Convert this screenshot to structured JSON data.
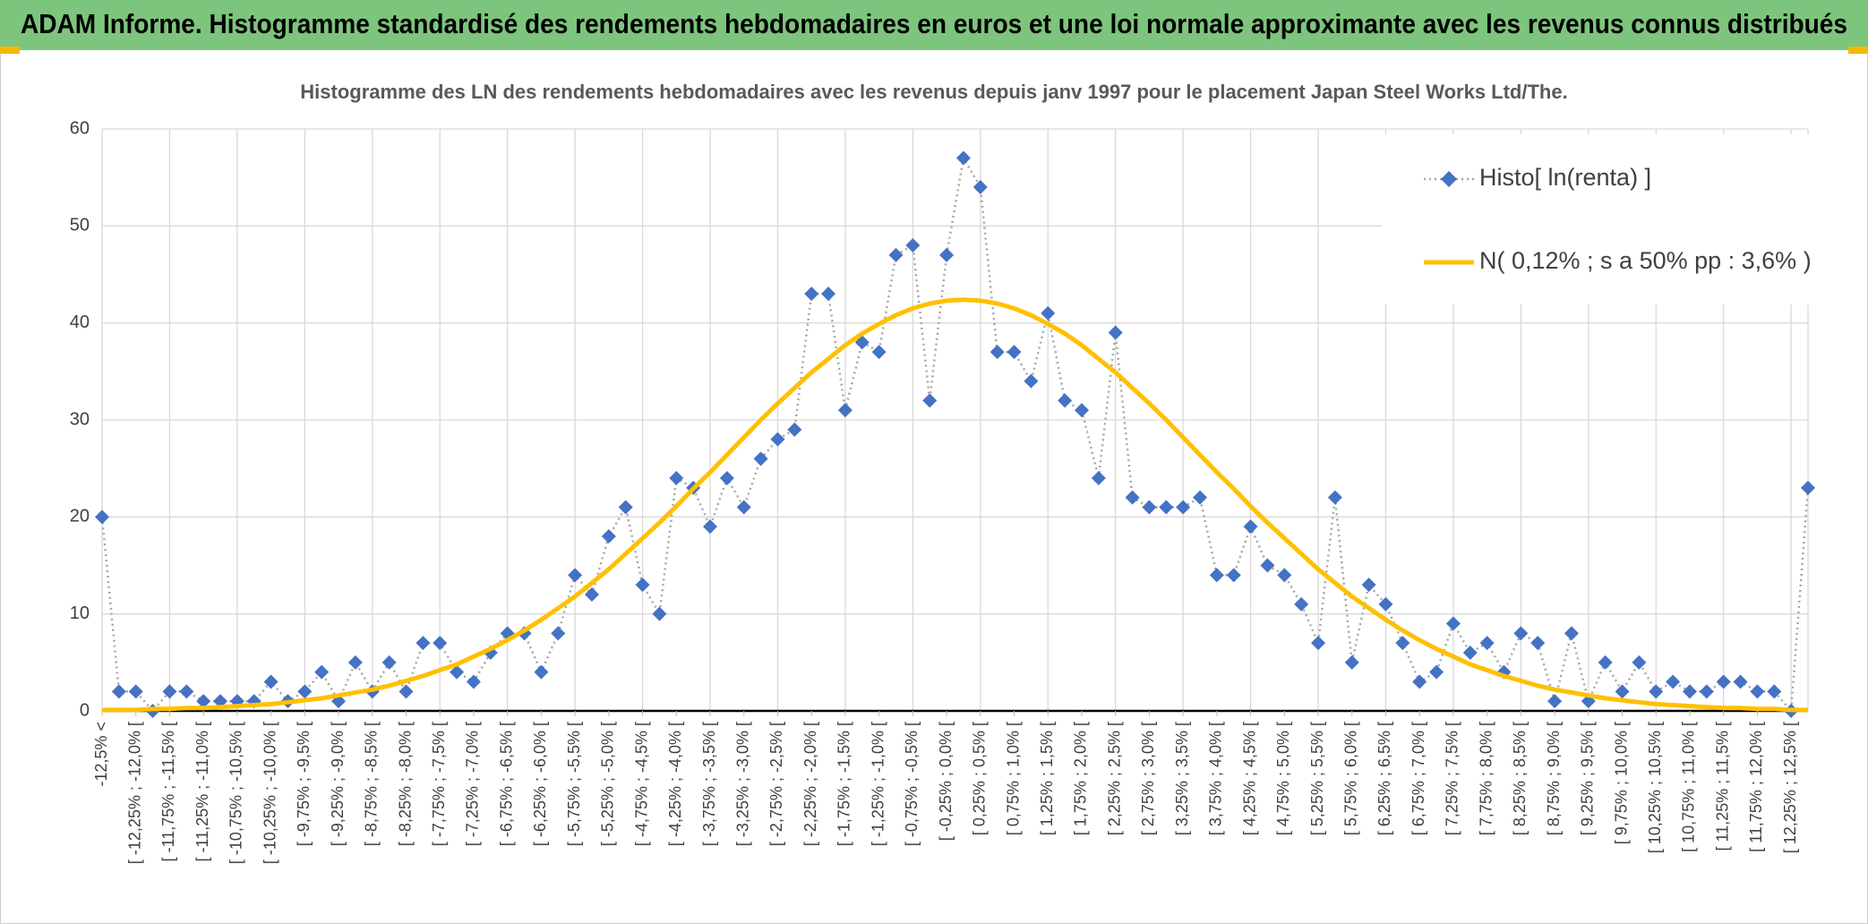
{
  "header": {
    "title": "ADAM Informe. Histogramme standardisé des rendements hebdomadaires en euros et une loi normale approximante avec les revenus connus distribués"
  },
  "chart_data": {
    "type": "line",
    "title": "Histogramme des LN des rendements hebdomadaires avec les revenus depuis janv 1997 pour le placement Japan Steel Works Ltd/The.",
    "categories": [
      "-12,5% <",
      null,
      "[ -12,25% ; -12,0% [",
      null,
      "[ -11,75% ; -11,5% [",
      null,
      "[ -11,25% ; -11,0% [",
      null,
      "[ -10,75% ; -10,5% [",
      null,
      "[ -10,25% ; -10,0% [",
      null,
      "[ -9,75% ; -9,5% [",
      null,
      "[ -9,25% ; -9,0% [",
      null,
      "[ -8,75% ; -8,5% [",
      null,
      "[ -8,25% ; -8,0% [",
      null,
      "[ -7,75% ; -7,5% [",
      null,
      "[ -7,25% ; -7,0% [",
      null,
      "[ -6,75% ; -6,5% [",
      null,
      "[ -6,25% ; -6,0% [",
      null,
      "[ -5,75% ; -5,5% [",
      null,
      "[ -5,25% ; -5,0% [",
      null,
      "[ -4,75% ; -4,5% [",
      null,
      "[ -4,25% ; -4,0% [",
      null,
      "[ -3,75% ; -3,5% [",
      null,
      "[ -3,25% ; -3,0% [",
      null,
      "[ -2,75% ; -2,5% [",
      null,
      "[ -2,25% ; -2,0% [",
      null,
      "[ -1,75% ; -1,5% [",
      null,
      "[ -1,25% ; -1,0% [",
      null,
      "[ -0,75% ; -0,5% [",
      null,
      "[ -0,25% ; 0,0% [",
      null,
      "[ 0,25% ; 0,5% [",
      null,
      "[ 0,75% ; 1,0% [",
      null,
      "[ 1,25% ; 1,5% [",
      null,
      "[ 1,75% ; 2,0% [",
      null,
      "[ 2,25% ; 2,5% [",
      null,
      "[ 2,75% ; 3,0% [",
      null,
      "[ 3,25% ; 3,5% [",
      null,
      "[ 3,75% ; 4,0% [",
      null,
      "[ 4,25% ; 4,5% [",
      null,
      "[ 4,75% ; 5,0% [",
      null,
      "[ 5,25% ; 5,5% [",
      null,
      "[ 5,75% ; 6,0% [",
      null,
      "[ 6,25% ; 6,5% [",
      null,
      "[ 6,75% ; 7,0% [",
      null,
      "[ 7,25% ; 7,5% [",
      null,
      "[ 7,75% ; 8,0% [",
      null,
      "[ 8,25% ; 8,5% [",
      null,
      "[ 8,75% ; 9,0% [",
      null,
      "[ 9,25% ; 9,5% [",
      null,
      "[ 9,75% ; 10,0% [",
      null,
      "[ 10,25% ; 10,5% [",
      null,
      "[ 10,75% ; 11,0% [",
      null,
      "[ 11,25% ; 11,5% [",
      null,
      "[ 11,75% ; 12,0% [",
      null,
      "[ 12,25% ; 12,5% [",
      null
    ],
    "series": [
      {
        "name": "Histo[ ln(renta) ]",
        "color": "#4472c4",
        "line_color": "#a5a5a5",
        "marker": "diamond",
        "values": [
          20,
          2,
          2,
          0,
          2,
          2,
          1,
          1,
          1,
          1,
          3,
          1,
          2,
          4,
          1,
          5,
          2,
          5,
          2,
          7,
          7,
          4,
          3,
          6,
          8,
          8,
          4,
          8,
          14,
          12,
          18,
          21,
          13,
          10,
          24,
          23,
          19,
          24,
          21,
          26,
          28,
          29,
          43,
          43,
          31,
          38,
          37,
          47,
          48,
          32,
          47,
          57,
          54,
          37,
          37,
          34,
          41,
          32,
          31,
          24,
          39,
          22,
          21,
          21,
          21,
          22,
          14,
          14,
          19,
          15,
          14,
          11,
          7,
          22,
          5,
          13,
          11,
          7,
          3,
          4,
          9,
          6,
          7,
          4,
          8,
          7,
          1,
          8,
          1,
          5,
          2,
          5,
          2,
          3,
          2,
          2,
          3,
          3,
          2,
          2,
          0,
          23
        ]
      },
      {
        "name": "N( 0,12% ; s a 50% pp : 3,6% )",
        "color": "#ffc000",
        "values": [
          0.1,
          0.1,
          0.1,
          0.2,
          0.2,
          0.3,
          0.3,
          0.4,
          0.5,
          0.6,
          0.7,
          0.9,
          1.1,
          1.3,
          1.6,
          1.9,
          2.2,
          2.6,
          3.1,
          3.6,
          4.2,
          4.8,
          5.6,
          6.4,
          7.3,
          8.3,
          9.4,
          10.6,
          11.8,
          13.2,
          14.6,
          16.2,
          17.8,
          19.4,
          21.1,
          22.9,
          24.6,
          26.4,
          28.2,
          30.0,
          31.7,
          33.3,
          34.9,
          36.3,
          37.7,
          38.9,
          39.9,
          40.8,
          41.5,
          42.0,
          42.3,
          42.4,
          42.3,
          42.0,
          41.5,
          40.8,
          39.9,
          38.9,
          37.7,
          36.3,
          34.9,
          33.3,
          31.7,
          30.0,
          28.2,
          26.4,
          24.6,
          22.9,
          21.1,
          19.4,
          17.8,
          16.2,
          14.6,
          13.2,
          11.8,
          10.6,
          9.4,
          8.3,
          7.3,
          6.4,
          5.6,
          4.8,
          4.2,
          3.6,
          3.1,
          2.6,
          2.2,
          1.9,
          1.6,
          1.3,
          1.1,
          0.9,
          0.7,
          0.6,
          0.5,
          0.4,
          0.3,
          0.3,
          0.2,
          0.2,
          0.1,
          0.1
        ]
      }
    ],
    "ylim": [
      0,
      60
    ],
    "yticks": [
      0,
      10,
      20,
      30,
      40,
      50,
      60
    ],
    "grid": true,
    "legend": "top-right"
  }
}
